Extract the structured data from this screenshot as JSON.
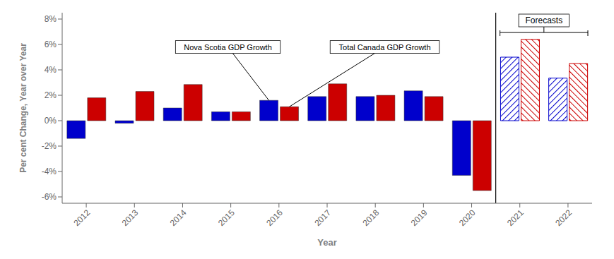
{
  "chart_data": {
    "type": "bar",
    "categories": [
      "2012",
      "2013",
      "2014",
      "2015",
      "2016",
      "2017",
      "2018",
      "2019",
      "2020",
      "2021",
      "2022"
    ],
    "series": [
      {
        "name": "Nova Scotia GDP Growth",
        "color": "#0000cc",
        "values": [
          -1.4,
          -0.2,
          1.0,
          0.7,
          1.6,
          1.9,
          1.9,
          2.35,
          -4.3,
          5.0,
          3.35
        ]
      },
      {
        "name": "Total Canada GDP Growth",
        "color": "#cc0000",
        "values": [
          1.8,
          2.3,
          2.85,
          0.7,
          1.1,
          2.9,
          2.0,
          1.9,
          -5.5,
          6.4,
          4.5
        ]
      }
    ],
    "xlabel": "Year",
    "ylabel": "Per cent Change, Year over Year",
    "ylim": [
      -6.5,
      8.5
    ],
    "yticks": [
      {
        "value": -6,
        "label": "-6%"
      },
      {
        "value": -4,
        "label": "-4%"
      },
      {
        "value": -2,
        "label": "-2%"
      },
      {
        "value": 0,
        "label": "0%"
      },
      {
        "value": 2,
        "label": "2%"
      },
      {
        "value": 4,
        "label": "4%"
      },
      {
        "value": 6,
        "label": "6%"
      },
      {
        "value": 8,
        "label": "8%"
      }
    ],
    "grid": false,
    "annotations": [
      {
        "text": "Nova Scotia GDP Growth",
        "category": "2016"
      },
      {
        "text": "Total Canada GDP Growth",
        "category": "2016"
      },
      {
        "text": "Forecasts",
        "categories": [
          "2021",
          "2022"
        ]
      }
    ]
  }
}
